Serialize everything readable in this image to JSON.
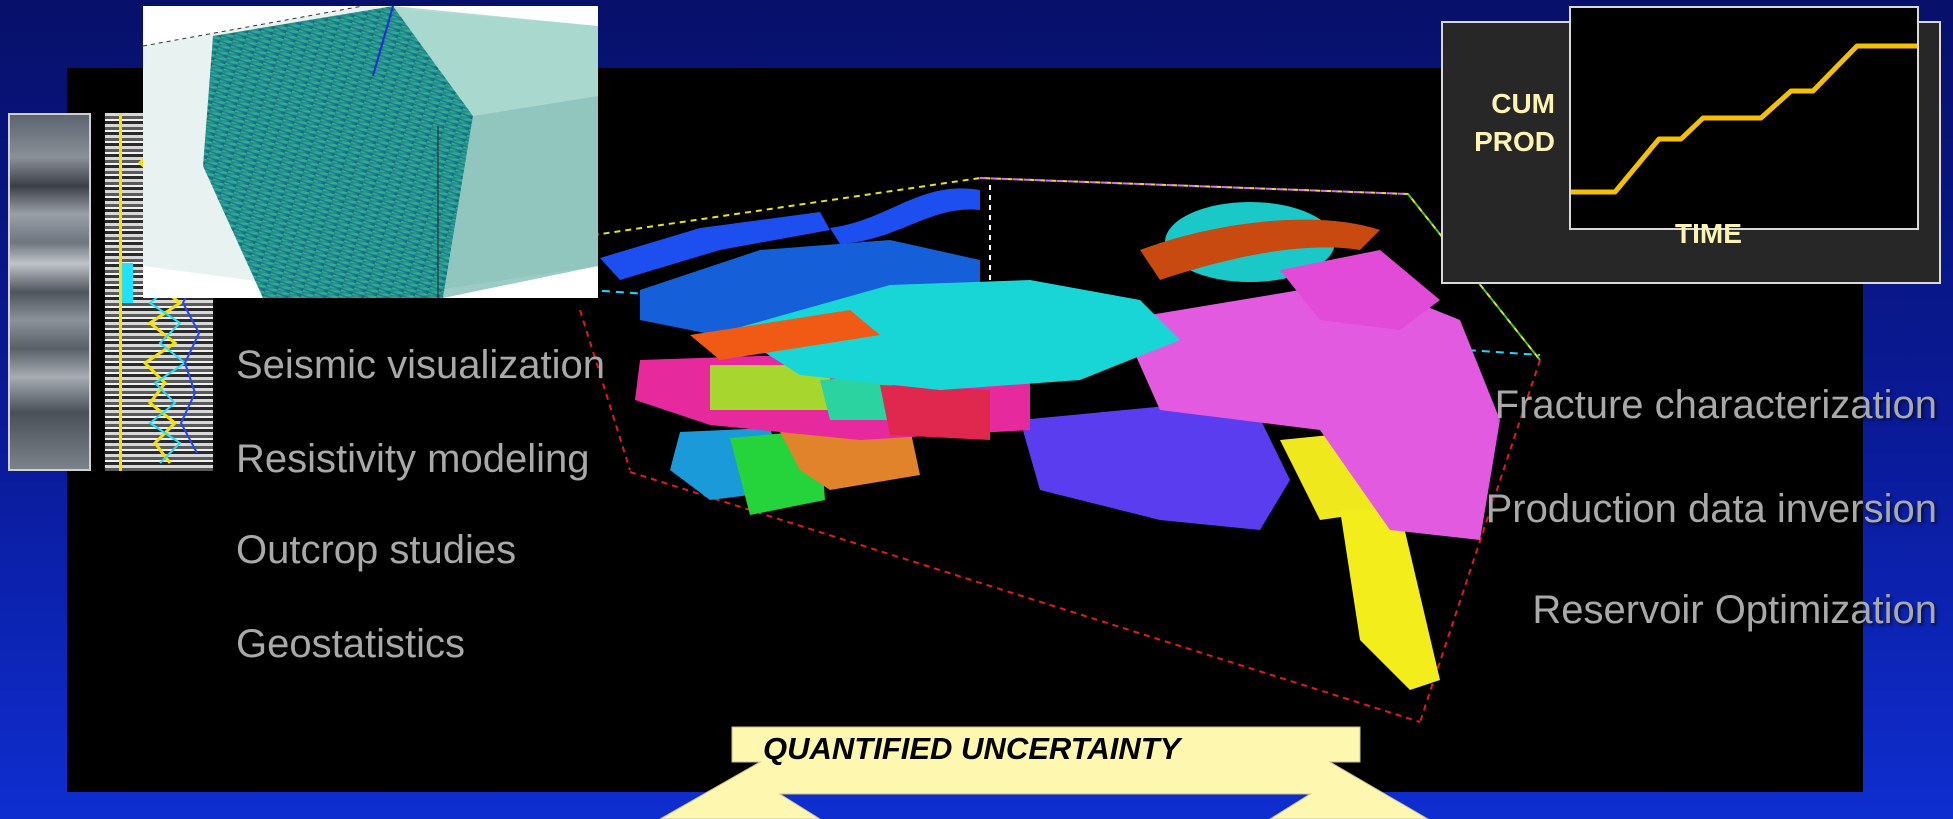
{
  "left_labels": [
    "Seismic visualization",
    "Resistivity modeling",
    "Outcrop studies",
    "Geostatistics"
  ],
  "right_labels": [
    "Fracture characterization",
    "Production data inversion",
    "Reservoir Optimization"
  ],
  "inset_chart": {
    "ylabel_line1": "CUM",
    "ylabel_line2": "PROD",
    "xlabel": "TIME",
    "line_color": "#f5c000",
    "label_color": "#fdf3b5"
  },
  "banner": {
    "text": "QUANTIFIED UNCERTAINTY",
    "fill_color": "#fdf7b0"
  },
  "colors": {
    "background_top": "#07106a",
    "background_bottom": "#0f2ed0",
    "label_gray": "#a9a9a9"
  }
}
